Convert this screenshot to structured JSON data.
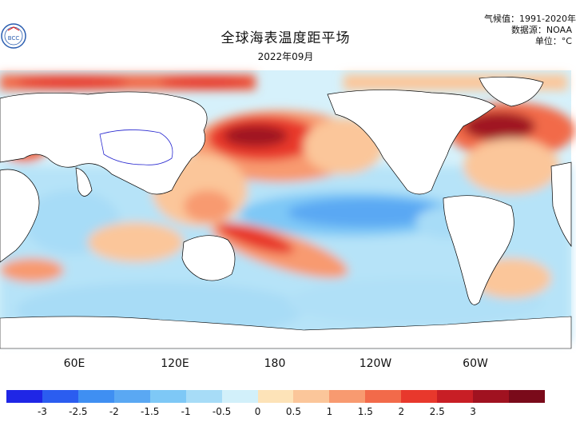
{
  "header": {
    "title": "全球海表温度距平场",
    "subtitle": "2022年09月",
    "meta_lines": [
      "气候值：1991-2020年",
      "数据源：NOAA",
      "单位：°C"
    ],
    "logo_text": "BCC"
  },
  "map": {
    "lon_labels": [
      "60E",
      "120E",
      "180",
      "120W",
      "60W"
    ]
  },
  "colorbar": {
    "colors": [
      "#1f26e6",
      "#2b5df0",
      "#3f8ff2",
      "#5aa8f3",
      "#7ec8f6",
      "#a7dcf7",
      "#d2f0fa",
      "#fde3b8",
      "#fbc69a",
      "#f89a70",
      "#f26a4a",
      "#e8382c",
      "#c81e25",
      "#a01220",
      "#7a0a1a"
    ],
    "tick_labels": [
      "-3",
      "-2.5",
      "-2",
      "-1.5",
      "-1",
      "-0.5",
      "0",
      "0.5",
      "1",
      "1.5",
      "2",
      "2.5",
      "3"
    ]
  }
}
